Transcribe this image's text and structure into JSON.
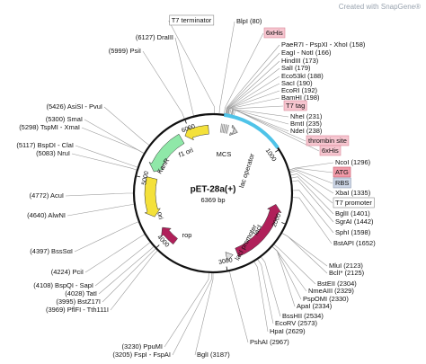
{
  "watermark": "Created with SnapGene®",
  "plasmid": {
    "name": "pET-28a(+)",
    "size": "6369 bp",
    "ticks": [
      1000,
      2000,
      3000,
      4000,
      5000,
      6000
    ]
  },
  "features": {
    "mcs": "MCS",
    "f1_ori": "f1 ori",
    "kanr": "KanR",
    "ori": "ori",
    "rop": "rop",
    "laci": "lacI",
    "laci_promoter": "lacI promoter",
    "lac_operator": "lac operator"
  },
  "t7_terminator": "T7 terminator",
  "left_sites": [
    "(6127) DraIII",
    "(5999) PsiI",
    "(5426) AsiSI - PvuI",
    "(5300) SmaI",
    "(5298) TspMI - XmaI",
    "(5117) BspDI - ClaI",
    "(5083) NruI",
    "(4772) AcuI",
    "(4640) AlwNI",
    "(4397) BssSαI",
    "(4224) PciI",
    "(4108) BspQI - SapI",
    "(4028) TatI",
    "(3995) BstZ17I",
    "(3969) PflFI - Tth111I",
    "(3230) PpuMI",
    "(3205) FspI - FspAI"
  ],
  "right_sites": [
    "BlpI (80)",
    "6xHis",
    "PaeR7I - PspXI - XhoI (158)",
    "EagI - NotI (166)",
    "HindIII (173)",
    "SalI (179)",
    "Eco53kI (188)",
    "SacI (190)",
    "EcoRI (192)",
    "BamHI (198)",
    "T7 tag",
    "NheI (231)",
    "BmtI (235)",
    "NdeI (238)",
    "thrombin site",
    "6xHis",
    "NcoI (1296)",
    "ATG",
    "RBS",
    "XbaI (1335)",
    "T7 promoter",
    "BglII (1401)",
    "SgrAI (1442)",
    "SphI (1598)",
    "BstAPI (1652)",
    "MluI (2123)",
    "BclI* (2125)",
    "BstEII (2304)",
    "NmeAIII (2329)",
    "PspOMI (2330)",
    "ApaI (2334)",
    "BssHII (2534)",
    "EcoRV (2573)",
    "HpaI (2629)",
    "PshAI (2967)",
    "BglI (3187)"
  ]
}
